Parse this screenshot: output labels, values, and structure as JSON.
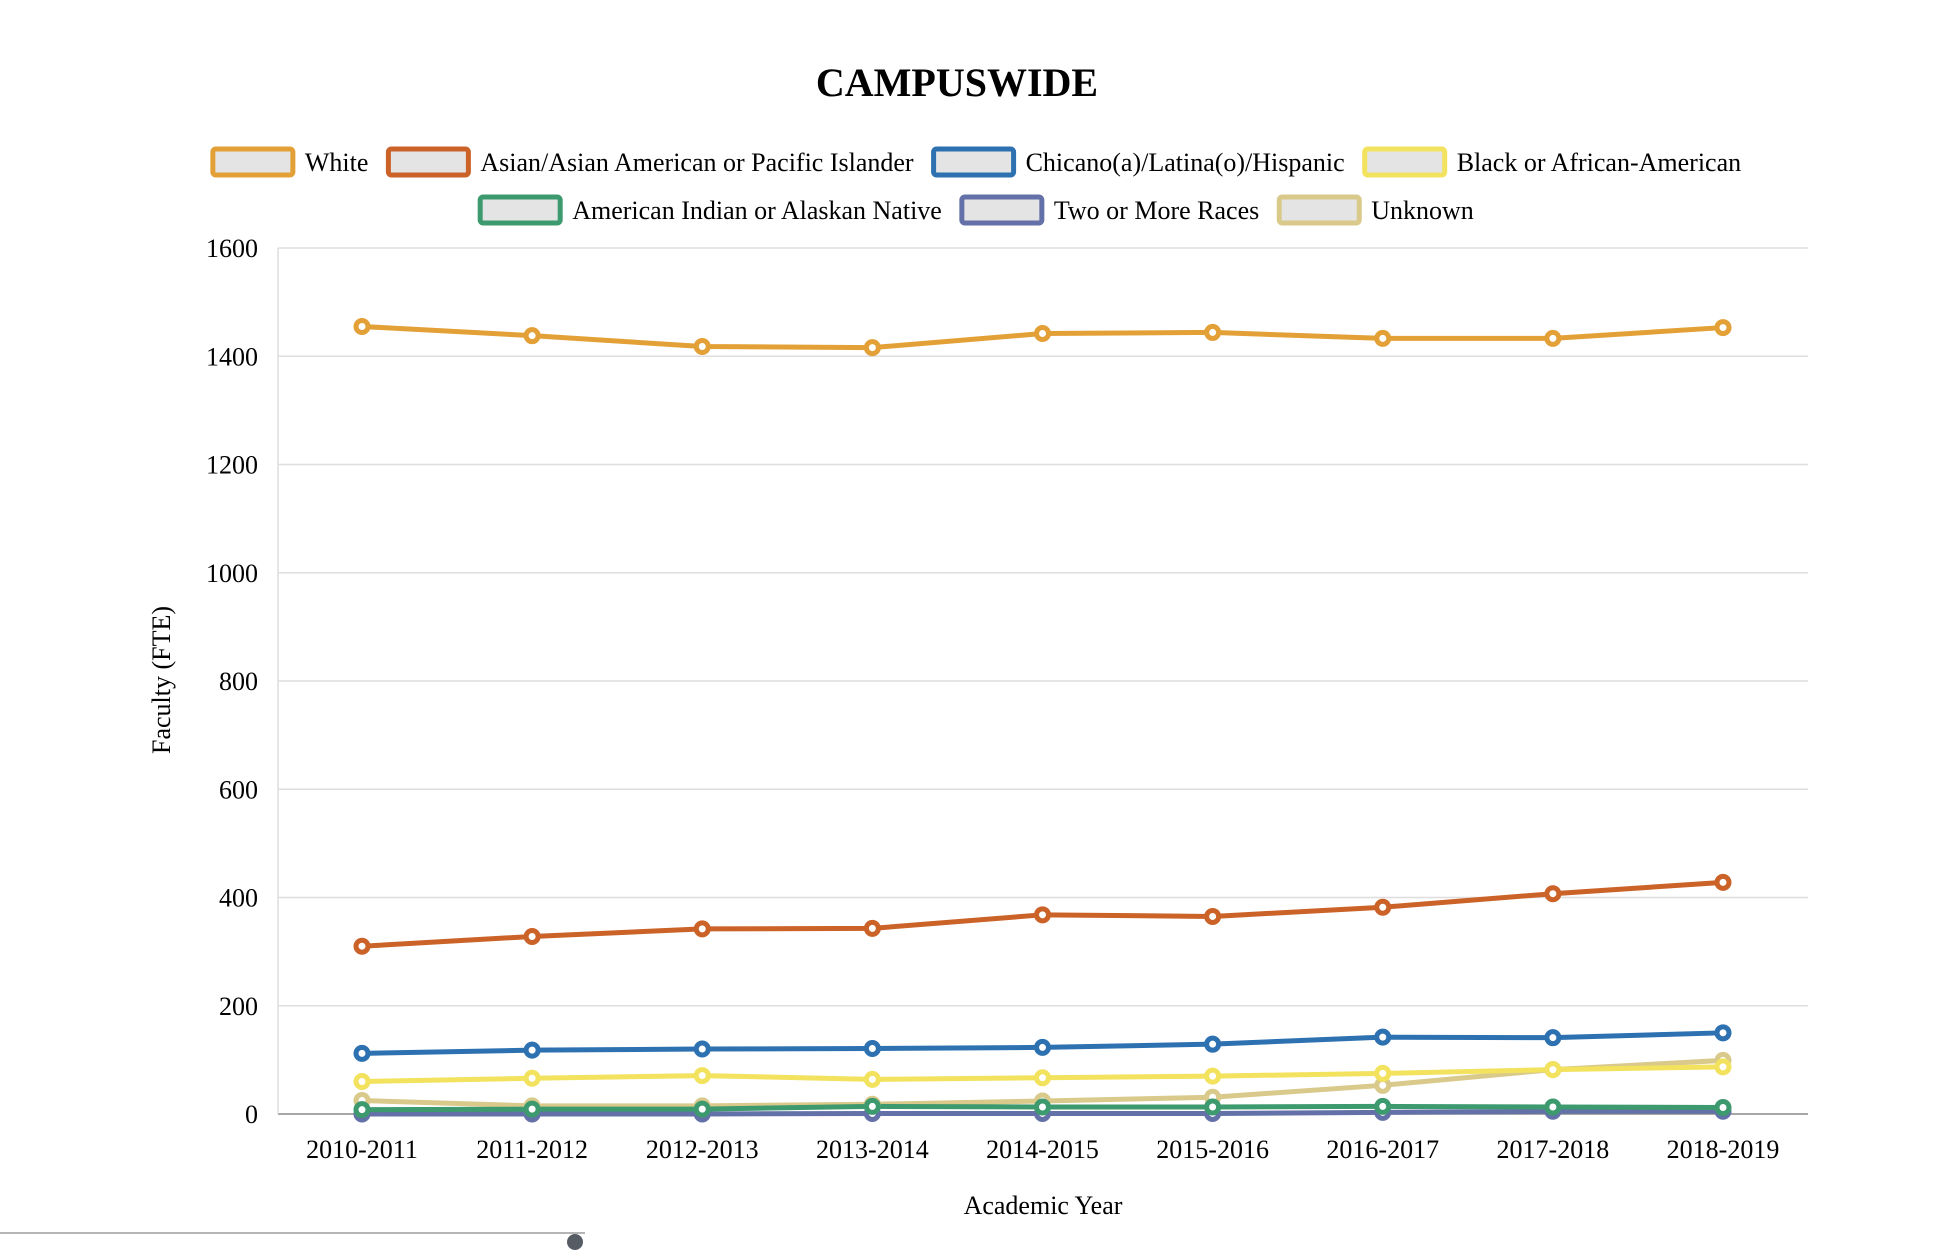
{
  "chart_data": {
    "type": "line",
    "title": "CAMPUSWIDE",
    "xlabel": "Academic Year",
    "ylabel": "Faculty (FTE)",
    "ylim": [
      0,
      1600
    ],
    "yticks": [
      0,
      200,
      400,
      600,
      800,
      1000,
      1200,
      1400,
      1600
    ],
    "grid": true,
    "legend_position": "top",
    "categories": [
      "2010-2011",
      "2011-2012",
      "2012-2013",
      "2013-2014",
      "2014-2015",
      "2015-2016",
      "2016-2017",
      "2017-2018",
      "2018-2019"
    ],
    "series": [
      {
        "name": "White",
        "color": "#E3A036",
        "values": [
          1455,
          1438,
          1418,
          1416,
          1442,
          1444,
          1433,
          1433,
          1453
        ]
      },
      {
        "name": "Asian/Asian American or Pacific Islander",
        "color": "#CB6228",
        "values": [
          310,
          328,
          342,
          343,
          368,
          365,
          382,
          407,
          428
        ]
      },
      {
        "name": "Chicano(a)/Latina(o)/Hispanic",
        "color": "#2D71B1",
        "values": [
          112,
          118,
          120,
          121,
          123,
          129,
          142,
          141,
          150
        ]
      },
      {
        "name": "Black or African-American",
        "color": "#F2E25E",
        "values": [
          60,
          66,
          71,
          64,
          67,
          70,
          75,
          82,
          87
        ]
      },
      {
        "name": "American Indian or Alaskan Native",
        "color": "#3C9A6E",
        "values": [
          8,
          9,
          9,
          14,
          13,
          13,
          14,
          13,
          12
        ]
      },
      {
        "name": "Two or More Races",
        "color": "#6371A8",
        "values": [
          0,
          0,
          0,
          1,
          1,
          1,
          3,
          5,
          5
        ]
      },
      {
        "name": "Unknown",
        "color": "#D9C98A",
        "values": [
          25,
          15,
          15,
          18,
          24,
          31,
          53,
          82,
          99
        ]
      }
    ]
  }
}
